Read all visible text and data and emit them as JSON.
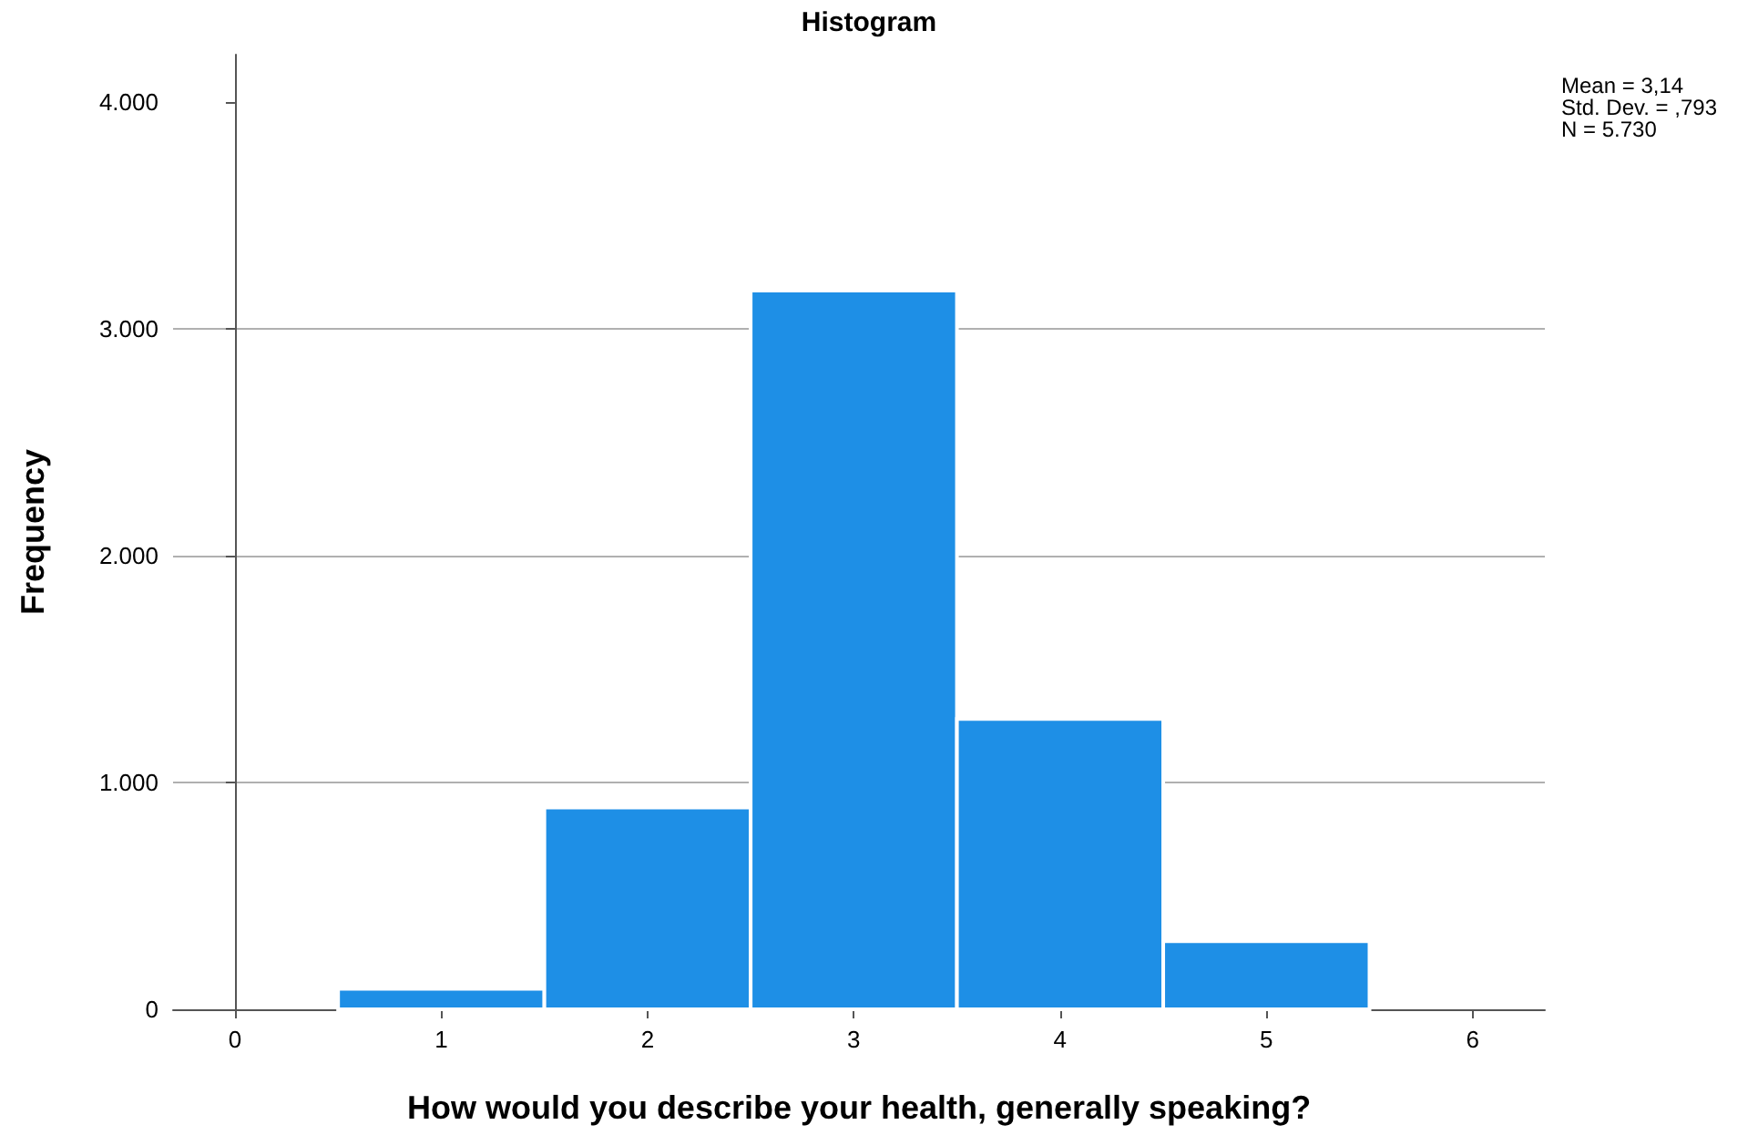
{
  "chart_data": {
    "type": "histogram",
    "title": "Histogram",
    "xlabel": "How would you describe your health, generally speaking?",
    "ylabel": "Frequency",
    "bins": [
      0.5,
      1.5,
      2.5,
      3.5,
      4.5,
      5.5
    ],
    "values": [
      90,
      890,
      3170,
      1280,
      300
    ],
    "color": "#1e8fe6",
    "xlim": [
      -0.3,
      6.35
    ],
    "xticks": [
      0,
      1,
      2,
      3,
      4,
      5,
      6
    ],
    "ylim": [
      0,
      4210
    ],
    "yticks": [
      0,
      {
        "value": 1000,
        "label": "1.000"
      },
      {
        "value": 2000,
        "label": "2.000"
      },
      {
        "value": 3000,
        "label": "3.000"
      },
      {
        "value": 4000,
        "label": "4.000"
      }
    ],
    "grid": "y",
    "annotations": [
      "Mean = 3,14",
      "Std. Dev. = ,793",
      "N = 5.730"
    ]
  }
}
